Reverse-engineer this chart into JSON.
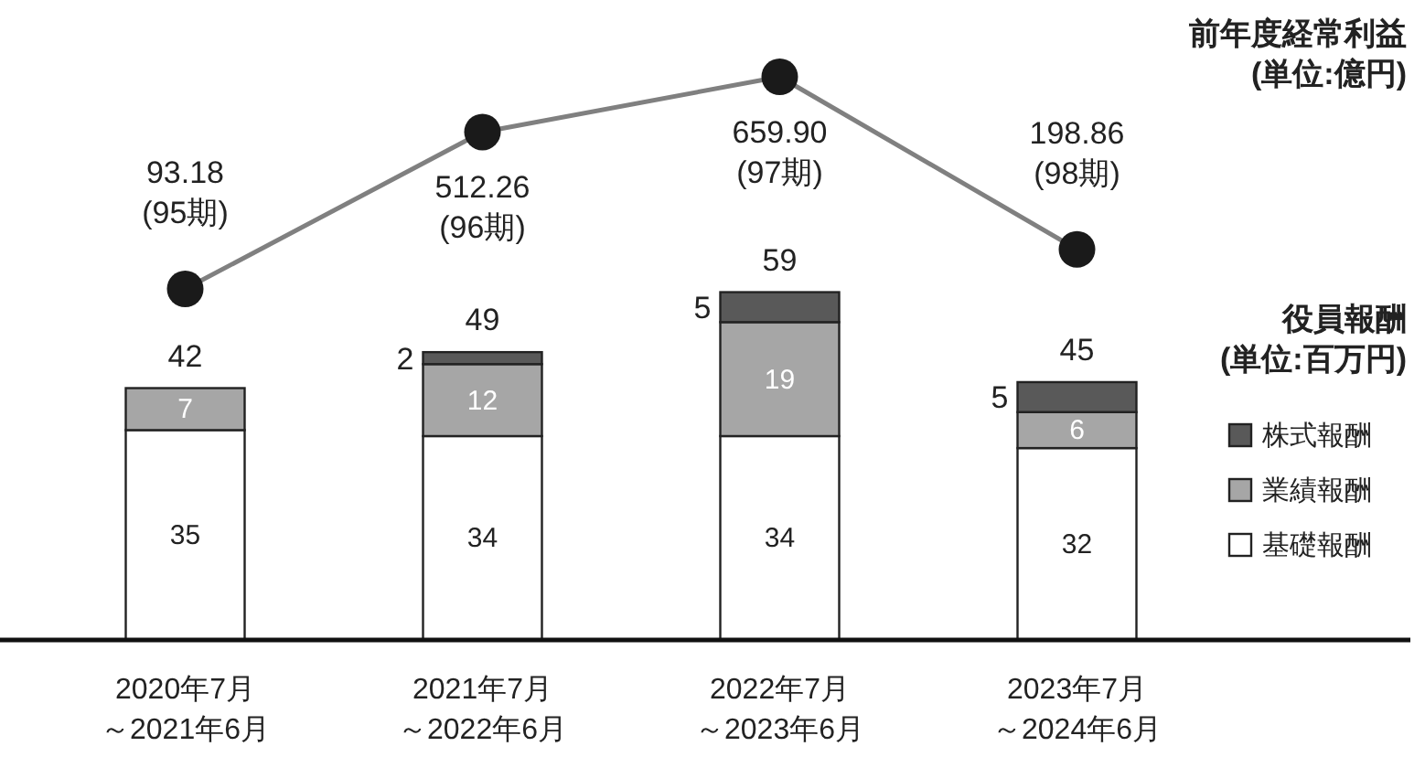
{
  "chart_data": [
    {
      "type": "line",
      "title": "前年度経常利益\n(単位:億円)",
      "categories": [
        null,
        null,
        null,
        null
      ],
      "marker": "circle",
      "series": [
        {
          "color": "#808080",
          "values": [
            93.18,
            512.26,
            659.9,
            198.86
          ],
          "value_labels": [
            "93.18\n(95期)",
            "512.26\n(96期)",
            "659.90\n(97期)",
            "198.86\n(98期)"
          ]
        }
      ]
    },
    {
      "type": "bar",
      "stacked": true,
      "categories": [
        "2020年7月～2021年6月",
        "2021年7月～2022年6月",
        "2022年7月～2023年6月",
        "2023年7月～2024年6月"
      ],
      "series": [
        {
          "name": "基礎報酬",
          "color": "#ffffff",
          "values": [
            35,
            34,
            34,
            32
          ],
          "value_labels": [
            "35",
            "34",
            "34",
            "32"
          ]
        },
        {
          "name": "業績報酬",
          "color": "#a6a6a6",
          "values": [
            7,
            12,
            19,
            6
          ],
          "value_labels": [
            "7",
            "12",
            "19",
            "6"
          ]
        },
        {
          "name": "株式報酬",
          "color": "#595959",
          "values": [
            0,
            2,
            5,
            5
          ],
          "value_labels": [
            null,
            "2",
            "5",
            "5"
          ]
        }
      ],
      "totals": [
        "42",
        "49",
        "59",
        "45"
      ],
      "legend_title": "役員報酬\n(単位:百万円)",
      "legend": "right",
      "tick_labels": "x",
      "grid": false
    }
  ]
}
